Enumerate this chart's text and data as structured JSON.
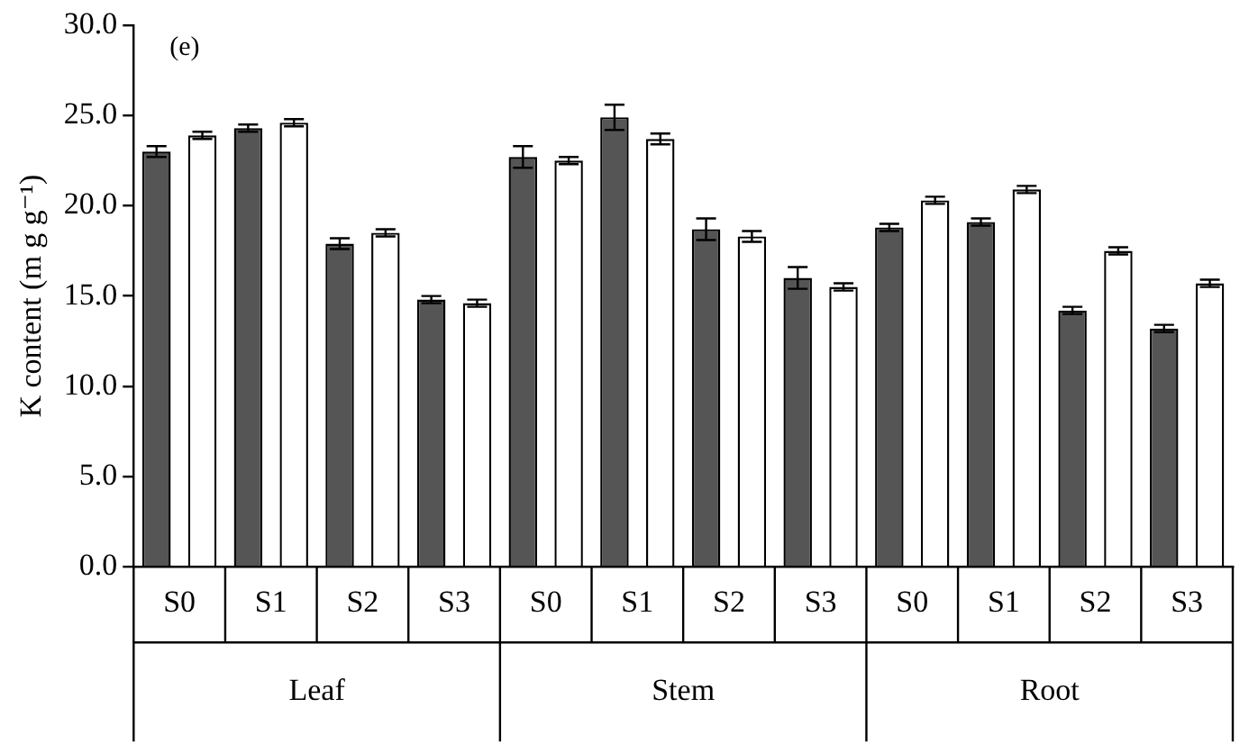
{
  "chart_data": {
    "type": "bar",
    "ylabel": "K content (m g g⁻¹)",
    "categories": [
      "S0",
      "S1",
      "S2",
      "S3",
      "S0",
      "S1",
      "S2",
      "S3",
      "S0",
      "S1",
      "S2",
      "S3"
    ],
    "series": [
      {
        "color": "#555555",
        "values": [
          23.0,
          24.3,
          17.9,
          14.8,
          22.7,
          24.9,
          18.7,
          16.0,
          18.8,
          19.1,
          14.2,
          13.2
        ],
        "errors": [
          0.3,
          0.2,
          0.3,
          0.2,
          0.6,
          0.7,
          0.6,
          0.6,
          0.2,
          0.2,
          0.2,
          0.2
        ]
      },
      {
        "color": "#ffffff",
        "values": [
          23.9,
          24.6,
          18.5,
          14.6,
          22.5,
          23.7,
          18.3,
          15.5,
          20.3,
          20.9,
          17.5,
          15.7
        ],
        "errors": [
          0.2,
          0.2,
          0.2,
          0.2,
          0.2,
          0.3,
          0.3,
          0.2,
          0.2,
          0.2,
          0.2,
          0.2
        ]
      }
    ],
    "ylim": [
      0,
      30
    ],
    "yticks": [
      {
        "value": 0,
        "label": "0.0"
      },
      {
        "value": 5,
        "label": "5.0"
      },
      {
        "value": 10,
        "label": "10.0"
      },
      {
        "value": 15,
        "label": "15.0"
      },
      {
        "value": 20,
        "label": "20.0"
      },
      {
        "value": 25,
        "label": "25.0"
      },
      {
        "value": 30,
        "label": "30.0"
      }
    ],
    "grid": false,
    "legend": false,
    "annotations": [
      "(e)",
      "Leaf",
      "Stem",
      "Root"
    ]
  }
}
